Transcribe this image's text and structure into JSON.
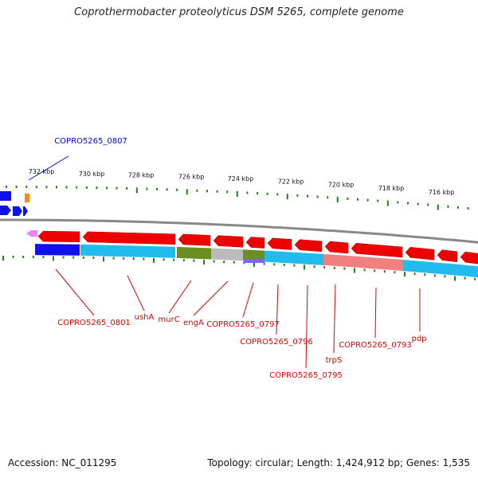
{
  "title": "Coprothermobacter proteolyticus DSM 5265, complete genome",
  "footer": {
    "accession": "Accession: NC_011295",
    "summary": "Topology: circular; Length: 1,424,912 bp; Genes: 1,535"
  },
  "colors": {
    "axis": "#888888",
    "tick": "#2a7a1e",
    "cds": "#ee0000",
    "cog_blue": "#1010ee",
    "cog_cyan": "#22bbee",
    "cog_olive": "#6b8e23",
    "cog_gray": "#bbbbbb",
    "cog_salmon": "#f08080",
    "cog_purple": "#7b68ee",
    "cog_orange": "#ff8c00",
    "cog_pink": "#ee82ee",
    "label_red": "#dd0000",
    "label_blue": "#0000dd"
  },
  "scale_ticks": [
    "732 kbp",
    "730 kbp",
    "728 kbp",
    "726 kbp",
    "724 kbp",
    "722 kbp",
    "720 kbp",
    "718 kbp",
    "716 kbp"
  ],
  "gene_labels": [
    {
      "text": "COPRO5265_0807",
      "color": "blue"
    },
    {
      "text": "COPRO5265_0801",
      "color": "red"
    },
    {
      "text": "ushA",
      "color": "red"
    },
    {
      "text": "murC",
      "color": "red"
    },
    {
      "text": "engA",
      "color": "red"
    },
    {
      "text": "COPRO5265_0797",
      "color": "red"
    },
    {
      "text": "COPRO5265_0796",
      "color": "red"
    },
    {
      "text": "COPRO5265_0795",
      "color": "red"
    },
    {
      "text": "trpS",
      "color": "red"
    },
    {
      "text": "COPRO5265_0793",
      "color": "red"
    },
    {
      "text": "pdp",
      "color": "red"
    }
  ]
}
